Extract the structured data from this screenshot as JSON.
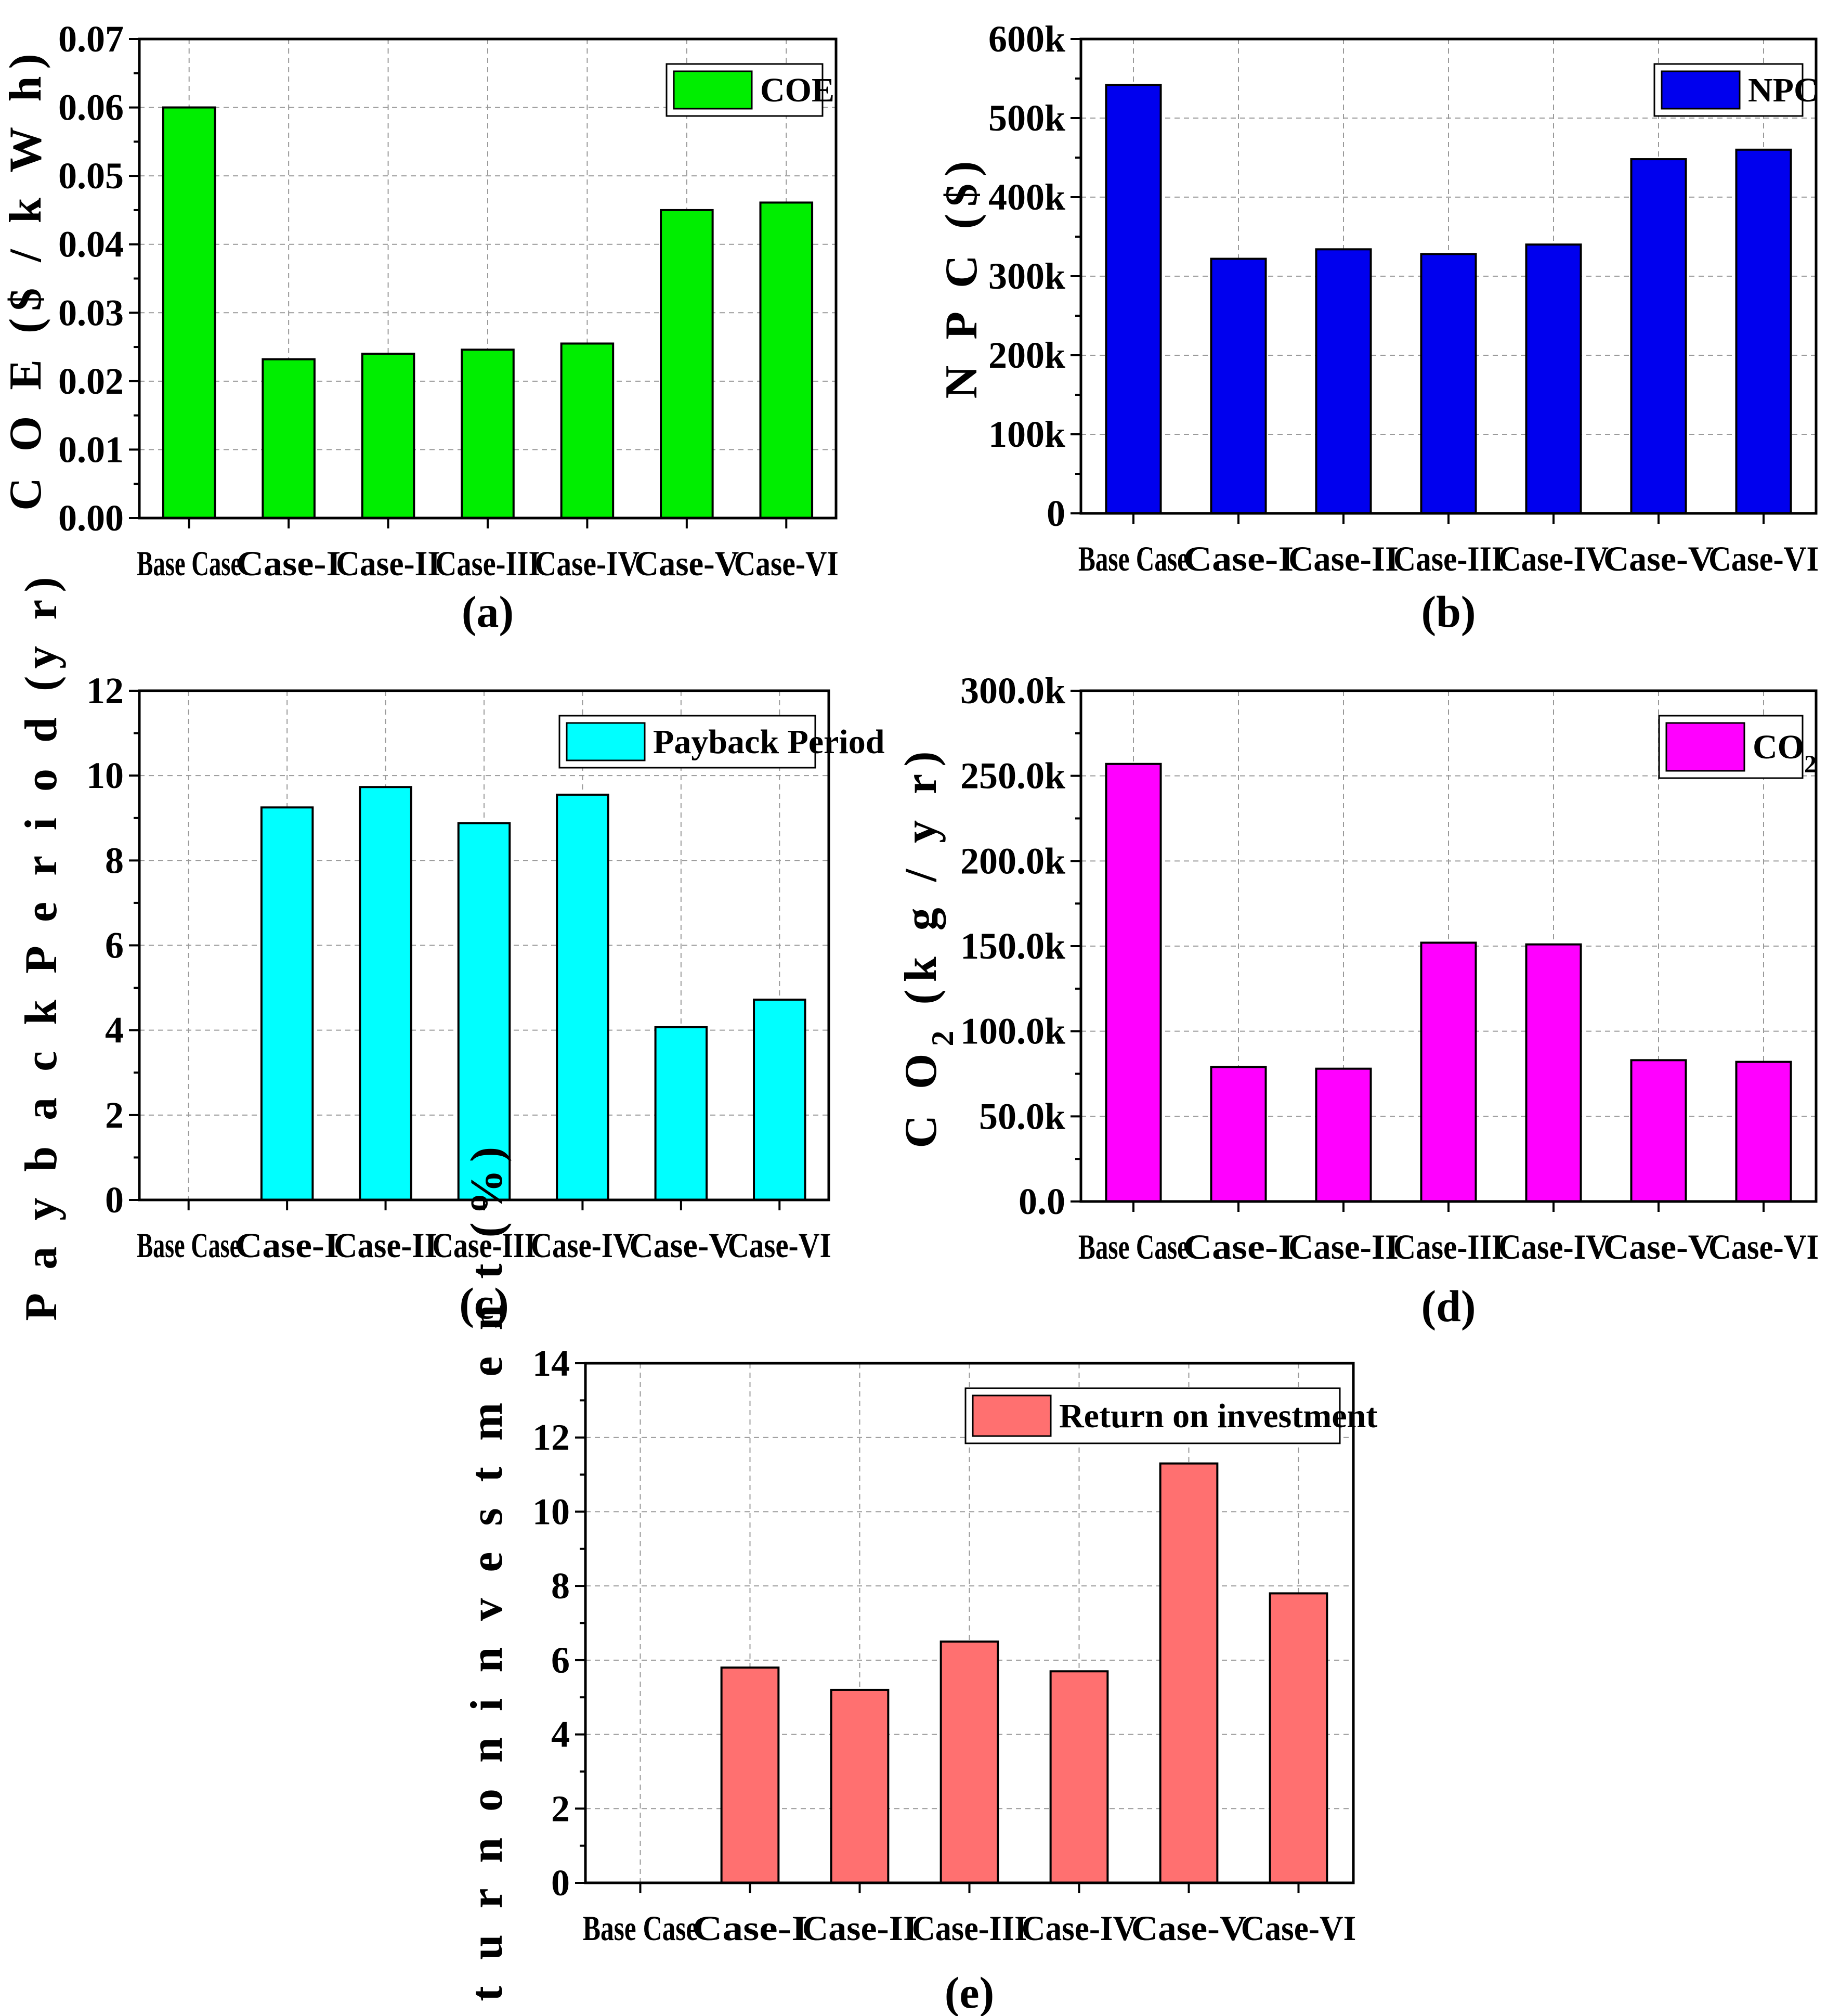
{
  "chart_data": [
    {
      "id": "a",
      "type": "bar",
      "panel_label": "(a)",
      "categories": [
        "Base Case",
        "Case-I",
        "Case-II",
        "Case-III",
        "Case-IV",
        "Case-V",
        "Case-VI"
      ],
      "series": [
        {
          "name": "COE",
          "values": [
            0.06,
            0.0232,
            0.024,
            0.0246,
            0.0255,
            0.045,
            0.0461
          ]
        }
      ],
      "ylabel": "COE ($/kWh)",
      "ylabel_parts": [
        {
          "text": "C O E  ($ / k W h)",
          "sub": false
        }
      ],
      "ylim": [
        0,
        0.07
      ],
      "yticks": [
        0,
        0.01,
        0.02,
        0.03,
        0.04,
        0.05,
        0.06,
        0.07
      ],
      "ytick_labels": [
        "0.00",
        "0.01",
        "0.02",
        "0.03",
        "0.04",
        "0.05",
        "0.06",
        "0.07"
      ],
      "color": "#00ee00",
      "legend": {
        "label": "COE",
        "position": "top-right"
      },
      "grid": true
    },
    {
      "id": "b",
      "type": "bar",
      "panel_label": "(b)",
      "categories": [
        "Base Case",
        "Case-I",
        "Case-II",
        "Case-III",
        "Case-IV",
        "Case-V",
        "Case-VI"
      ],
      "series": [
        {
          "name": "NPC",
          "values": [
            542000,
            322000,
            334000,
            328000,
            340000,
            448000,
            460000
          ]
        }
      ],
      "ylabel": "NPC ($)",
      "ylabel_parts": [
        {
          "text": "N P C  ($)",
          "sub": false
        }
      ],
      "ylim": [
        0,
        600000
      ],
      "yticks": [
        0,
        100000,
        200000,
        300000,
        400000,
        500000,
        600000
      ],
      "ytick_labels": [
        "0",
        "100k",
        "200k",
        "300k",
        "400k",
        "500k",
        "600k"
      ],
      "color": "#0000ee",
      "legend": {
        "label": "NPC",
        "position": "top-right"
      },
      "grid": true
    },
    {
      "id": "c",
      "type": "bar",
      "panel_label": "(c)",
      "categories": [
        "Base Case",
        "Case-I",
        "Case-II",
        "Case-III",
        "Case-IV",
        "Case-V",
        "Case-VI"
      ],
      "series": [
        {
          "name": "Payback Period",
          "values": [
            0,
            9.25,
            9.73,
            8.88,
            9.55,
            4.07,
            4.72
          ]
        }
      ],
      "ylabel": "Payback Period (yr)",
      "ylabel_parts": [
        {
          "text": "P a y b a c k  P e r i o d  (y r)",
          "sub": false
        }
      ],
      "ylim": [
        0,
        12
      ],
      "yticks": [
        0,
        2,
        4,
        6,
        8,
        10,
        12
      ],
      "ytick_labels": [
        "0",
        "2",
        "4",
        "6",
        "8",
        "10",
        "12"
      ],
      "color": "#00ffff",
      "legend": {
        "label": "Payback Period",
        "position": "top-right"
      },
      "grid": true
    },
    {
      "id": "d",
      "type": "bar",
      "panel_label": "(d)",
      "categories": [
        "Base Case",
        "Case-I",
        "Case-II",
        "Case-III",
        "Case-IV",
        "Case-V",
        "Case-VI"
      ],
      "series": [
        {
          "name": "CO2",
          "values": [
            257000,
            79000,
            78000,
            152000,
            151000,
            83000,
            82000
          ]
        }
      ],
      "ylabel": "CO2 (kg/yr)",
      "ylabel_parts": [
        {
          "text": "C O",
          "sub": false
        },
        {
          "text": "2",
          "sub": true
        },
        {
          "text": " (k g / y r)",
          "sub": false
        }
      ],
      "ylim": [
        0,
        300000
      ],
      "yticks": [
        0,
        50000,
        100000,
        150000,
        200000,
        250000,
        300000
      ],
      "ytick_labels": [
        "0.0",
        "50.0k",
        "100.0k",
        "150.0k",
        "200.0k",
        "250.0k",
        "300.0k"
      ],
      "color": "#ff00ff",
      "legend": {
        "label": "CO",
        "label_sub": "2",
        "position": "top-right"
      },
      "grid": true
    },
    {
      "id": "e",
      "type": "bar",
      "panel_label": "(e)",
      "categories": [
        "Base Case",
        "Case-I",
        "Case-II",
        "Case-III",
        "Case-IV",
        "Case-V",
        "Case-VI"
      ],
      "series": [
        {
          "name": "Return on investment",
          "values": [
            0,
            5.8,
            5.2,
            6.5,
            5.7,
            11.3,
            7.8
          ]
        }
      ],
      "ylabel": "Return on investment (%)",
      "ylabel_parts": [
        {
          "text": "R e t u r n  o n  i n v e s t m e n t  (%)",
          "sub": false
        }
      ],
      "ylim": [
        0,
        14
      ],
      "yticks": [
        0,
        2,
        4,
        6,
        8,
        10,
        12,
        14
      ],
      "ytick_labels": [
        "0",
        "2",
        "4",
        "6",
        "8",
        "10",
        "12",
        "14"
      ],
      "color": "#ff7070",
      "legend": {
        "label": "Return on investment",
        "position": "top-right"
      },
      "grid": true
    }
  ]
}
